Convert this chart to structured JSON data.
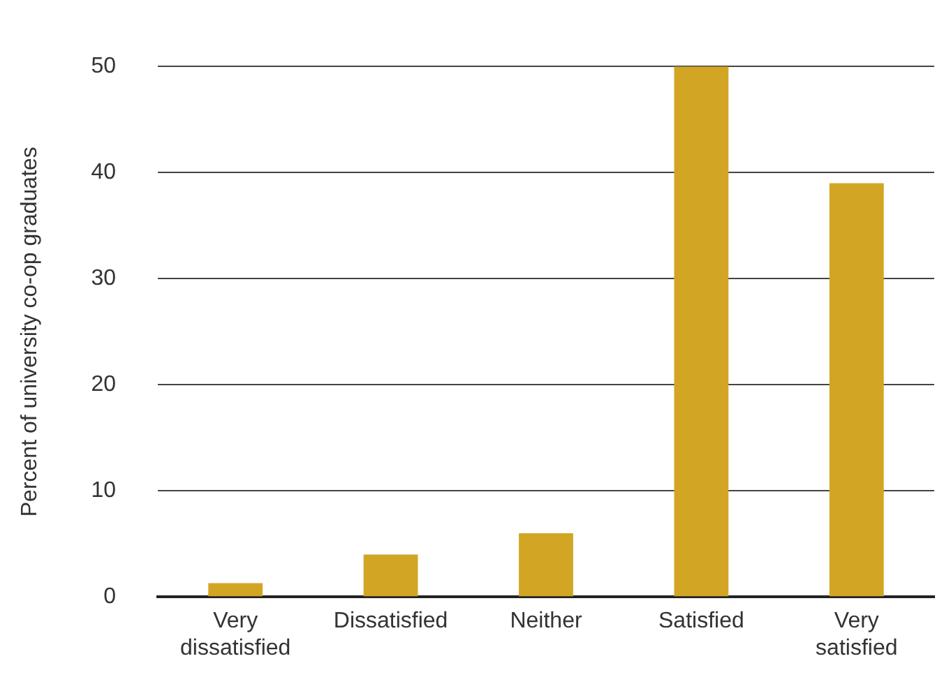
{
  "chart_data": {
    "type": "bar",
    "ylabel": "Percent of university co-op graduates",
    "categories": [
      "Very dissatisfied",
      "Dissatisfied",
      "Neither",
      "Satisfied",
      "Very satisfied"
    ],
    "values": [
      1.3,
      4,
      6,
      50,
      39
    ],
    "color": "#d2a624",
    "ylim": [
      0,
      50
    ],
    "yticks": [
      0,
      10,
      20,
      30,
      40,
      50
    ],
    "grid": "y"
  }
}
